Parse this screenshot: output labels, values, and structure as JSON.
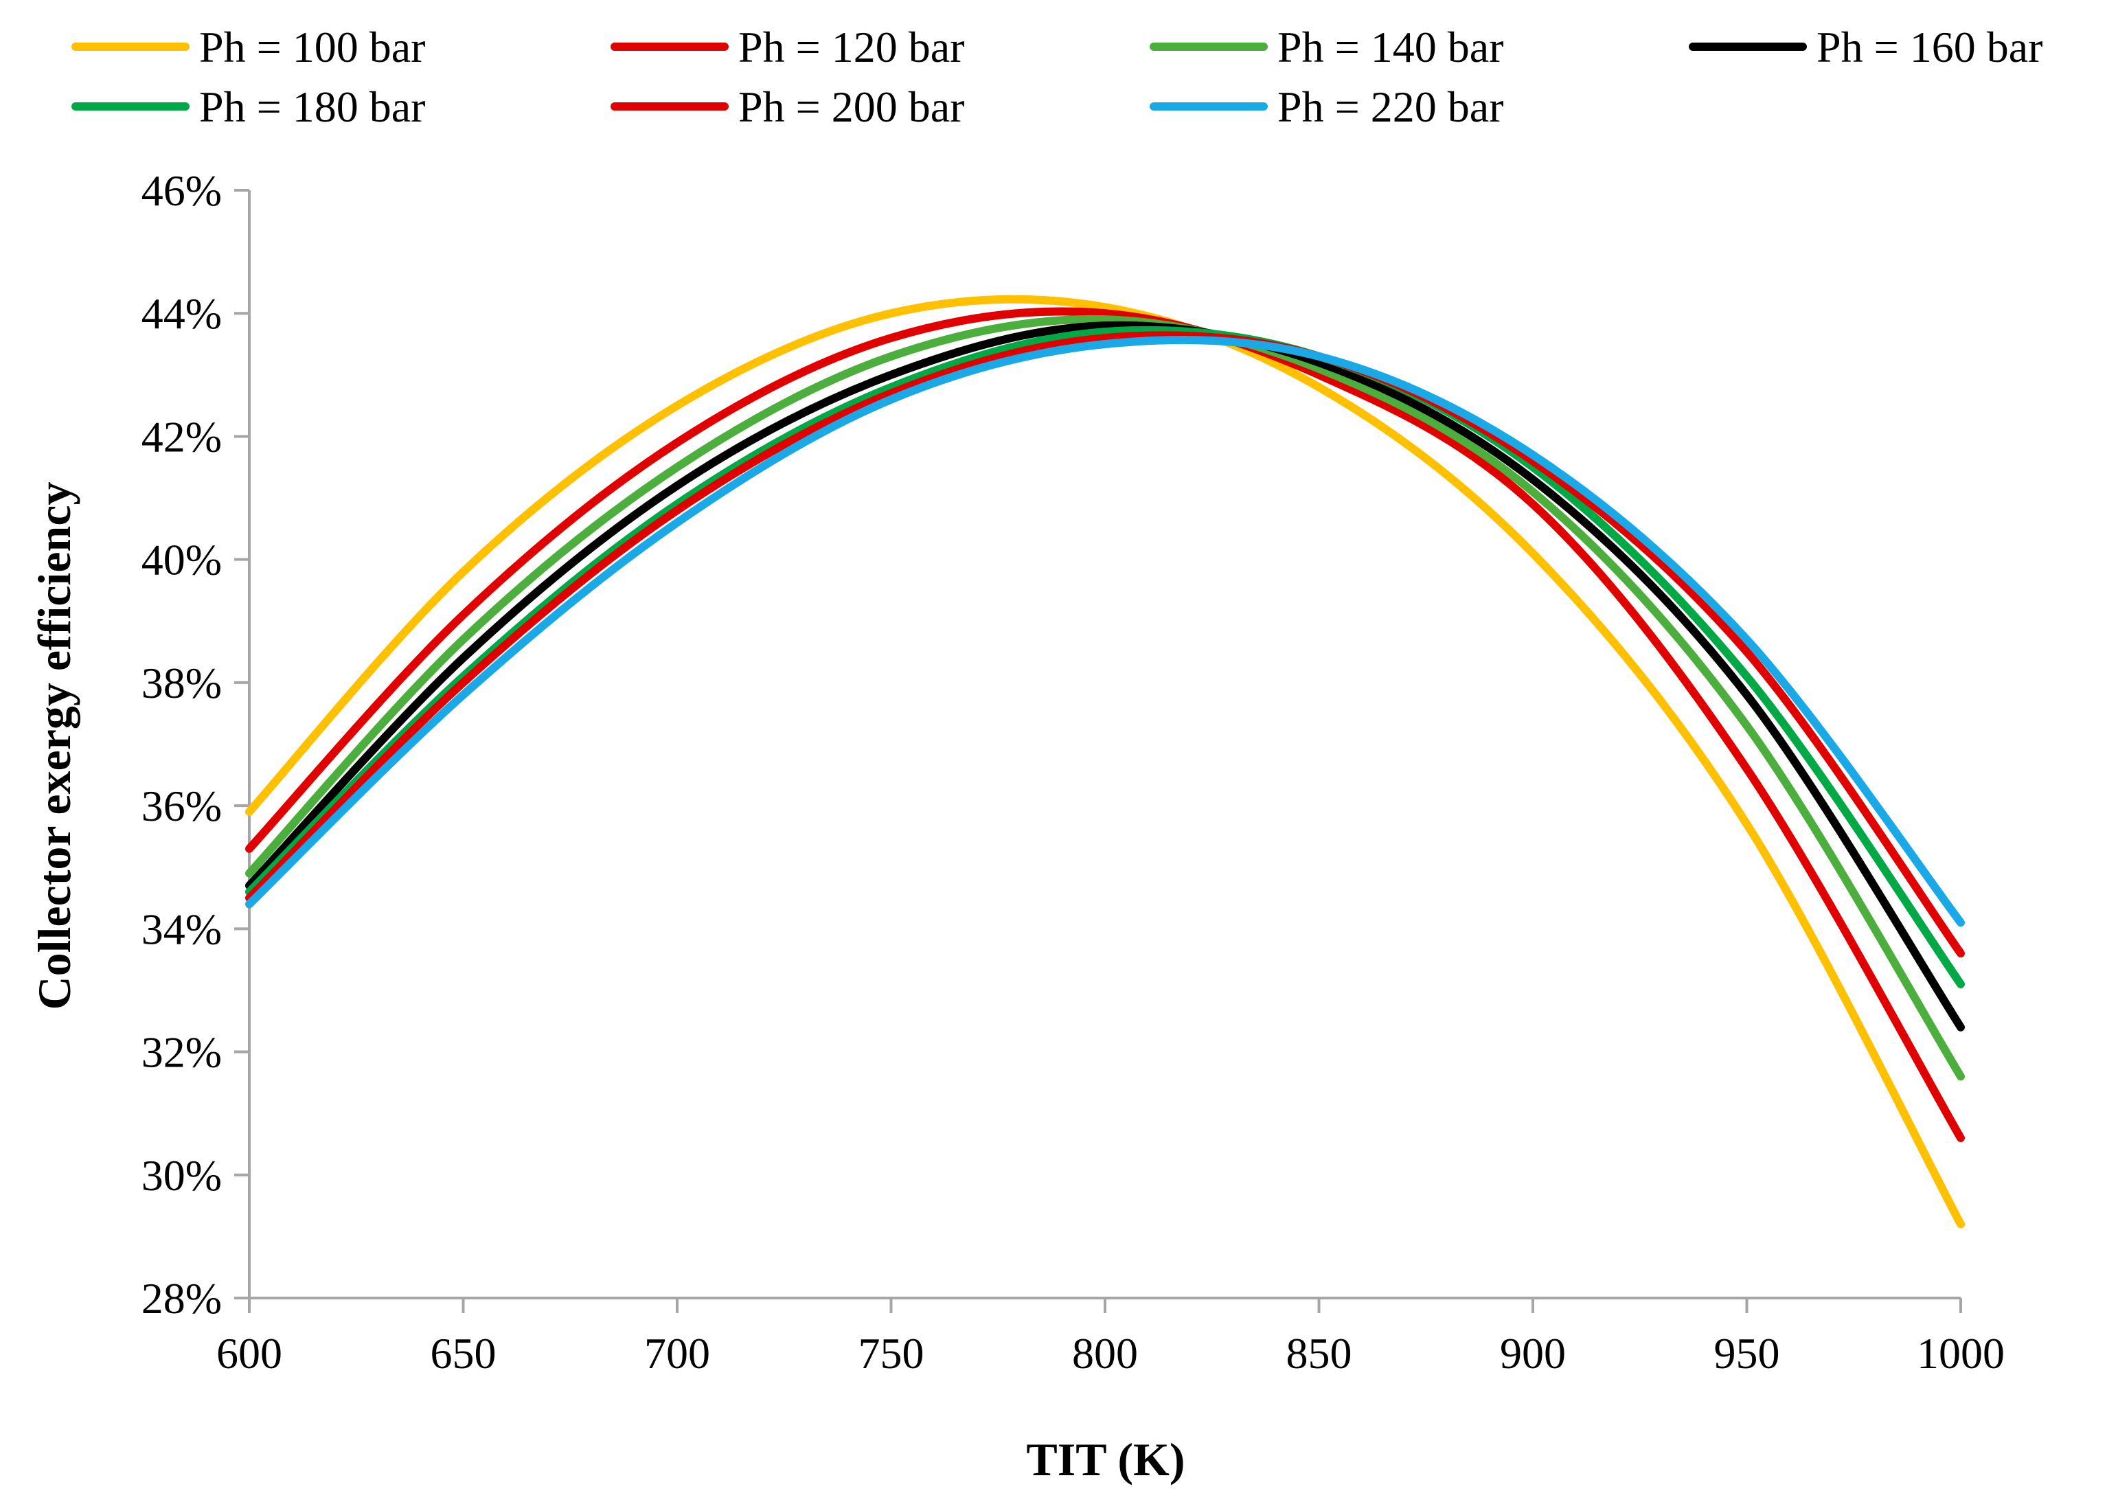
{
  "chart_data": {
    "type": "line",
    "title": "",
    "xlabel": "TIT (K)",
    "ylabel": "Collector exergy efficiency",
    "xlim": [
      600,
      1000
    ],
    "ylim": [
      28,
      46
    ],
    "x_ticks": [
      600,
      650,
      700,
      750,
      800,
      850,
      900,
      950,
      1000
    ],
    "x_tick_labels": [
      "600",
      "650",
      "700",
      "750",
      "800",
      "850",
      "900",
      "950",
      "1000"
    ],
    "y_ticks": [
      28,
      30,
      32,
      34,
      36,
      38,
      40,
      42,
      44,
      46
    ],
    "y_tick_labels": [
      "28%",
      "30%",
      "32%",
      "34%",
      "36%",
      "38%",
      "40%",
      "42%",
      "44%",
      "46%"
    ],
    "grid": false,
    "legend_position": "top",
    "x": [
      600,
      650,
      700,
      750,
      800,
      850,
      900,
      950,
      1000
    ],
    "series": [
      {
        "name": "Ph = 100 bar",
        "color": "#ffc000",
        "values": [
          35.9,
          39.8,
          42.5,
          44.0,
          44.1,
          42.8,
          40.1,
          35.7,
          29.2
        ]
      },
      {
        "name": "Ph = 120 bar",
        "color": "#e00000",
        "values": [
          35.3,
          39.1,
          41.9,
          43.6,
          44.0,
          43.0,
          40.9,
          36.6,
          30.6
        ]
      },
      {
        "name": "Ph = 140 bar",
        "color": "#4cae3c",
        "values": [
          34.9,
          38.7,
          41.5,
          43.3,
          43.9,
          43.1,
          41.1,
          37.3,
          31.6
        ]
      },
      {
        "name": "Ph = 160 bar",
        "color": "#000000",
        "values": [
          34.7,
          38.4,
          41.2,
          43.0,
          43.8,
          43.2,
          41.3,
          37.8,
          32.4
        ]
      },
      {
        "name": "Ph = 180 bar",
        "color": "#00a846",
        "values": [
          34.6,
          38.1,
          40.9,
          42.8,
          43.7,
          43.3,
          41.5,
          38.1,
          33.1
        ]
      },
      {
        "name": "Ph = 200 bar",
        "color": "#e00000",
        "values": [
          34.5,
          38.0,
          40.8,
          42.7,
          43.6,
          43.3,
          41.6,
          38.5,
          33.6
        ]
      },
      {
        "name": "Ph = 220 bar",
        "color": "#1aa9e6",
        "values": [
          34.4,
          37.8,
          40.6,
          42.6,
          43.5,
          43.3,
          41.7,
          38.7,
          34.1
        ]
      }
    ]
  }
}
